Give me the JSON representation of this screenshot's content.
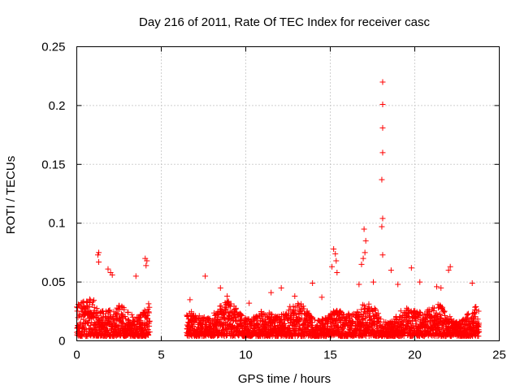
{
  "chart_data": {
    "type": "scatter",
    "title": "Day 216 of 2011, Rate Of TEC Index for receiver casc",
    "xlabel": "GPS time / hours",
    "ylabel": "ROTI / TECUs",
    "xlim": [
      0,
      25
    ],
    "ylim": [
      0,
      0.25
    ],
    "xticks": [
      0,
      5,
      10,
      15,
      20,
      25
    ],
    "xtick_labels": [
      "0",
      "5",
      "10",
      "15",
      "20",
      "25"
    ],
    "yticks": [
      0,
      0.05,
      0.1,
      0.15,
      0.2,
      0.25
    ],
    "ytick_labels": [
      "0",
      "0.05",
      "0.1",
      "0.15",
      "0.2",
      "0.25"
    ],
    "grid": true,
    "marker": "+",
    "color": "#ff0000",
    "series": [
      {
        "name": "ROTI",
        "points": [
          [
            18.1,
            0.22
          ],
          [
            18.1,
            0.201
          ],
          [
            18.1,
            0.181
          ],
          [
            18.1,
            0.16
          ],
          [
            18.05,
            0.137
          ],
          [
            18.1,
            0.104
          ],
          [
            18.05,
            0.097
          ],
          [
            18.1,
            0.073
          ],
          [
            17.0,
            0.095
          ],
          [
            17.1,
            0.085
          ],
          [
            17.05,
            0.075
          ],
          [
            16.95,
            0.07
          ],
          [
            15.2,
            0.078
          ],
          [
            15.3,
            0.074
          ],
          [
            15.35,
            0.068
          ],
          [
            15.1,
            0.063
          ],
          [
            15.4,
            0.058
          ],
          [
            1.3,
            0.075
          ],
          [
            1.25,
            0.073
          ],
          [
            1.3,
            0.067
          ],
          [
            1.85,
            0.061
          ],
          [
            2.0,
            0.058
          ],
          [
            2.1,
            0.056
          ],
          [
            4.05,
            0.07
          ],
          [
            4.15,
            0.068
          ],
          [
            4.1,
            0.064
          ],
          [
            7.6,
            0.055
          ],
          [
            3.5,
            0.055
          ],
          [
            22.1,
            0.063
          ],
          [
            22.0,
            0.06
          ],
          [
            19.8,
            0.062
          ],
          [
            16.85,
            0.065
          ],
          [
            18.6,
            0.06
          ],
          [
            20.3,
            0.05
          ],
          [
            23.4,
            0.049
          ],
          [
            13.95,
            0.049
          ],
          [
            12.1,
            0.045
          ],
          [
            8.5,
            0.045
          ],
          [
            16.7,
            0.048
          ],
          [
            17.55,
            0.05
          ],
          [
            19.0,
            0.048
          ],
          [
            21.3,
            0.046
          ],
          [
            21.55,
            0.045
          ],
          [
            11.5,
            0.041
          ],
          [
            10.2,
            0.032
          ],
          [
            12.9,
            0.038
          ],
          [
            14.5,
            0.037
          ],
          [
            6.7,
            0.035
          ],
          [
            8.9,
            0.038
          ]
        ]
      }
    ],
    "clusters": [
      {
        "x_start": 0.0,
        "x_end": 4.3,
        "base": 0.015,
        "peak": 0.035,
        "density": 4
      },
      {
        "x_start": 6.5,
        "x_end": 23.8,
        "base": 0.012,
        "peak": 0.03,
        "density": 4
      }
    ]
  }
}
